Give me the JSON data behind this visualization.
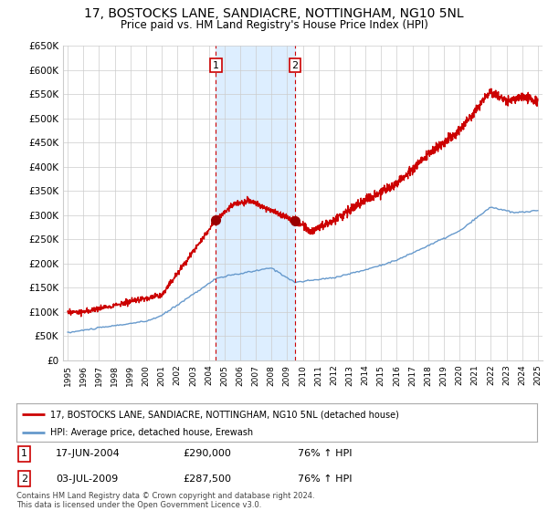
{
  "title": "17, BOSTOCKS LANE, SANDIACRE, NOTTINGHAM, NG10 5NL",
  "subtitle": "Price paid vs. HM Land Registry's House Price Index (HPI)",
  "title_fontsize": 10,
  "subtitle_fontsize": 8.5,
  "legend_label_red": "17, BOSTOCKS LANE, SANDIACRE, NOTTINGHAM, NG10 5NL (detached house)",
  "legend_label_blue": "HPI: Average price, detached house, Erewash",
  "footer": "Contains HM Land Registry data © Crown copyright and database right 2024.\nThis data is licensed under the Open Government Licence v3.0.",
  "transaction1_label": "1",
  "transaction1_date": "17-JUN-2004",
  "transaction1_price": "£290,000",
  "transaction1_hpi": "76% ↑ HPI",
  "transaction2_label": "2",
  "transaction2_date": "03-JUL-2009",
  "transaction2_price": "£287,500",
  "transaction2_hpi": "76% ↑ HPI",
  "vline1_x": 2004.46,
  "vline2_x": 2009.5,
  "sale1_y": 290000,
  "sale2_y": 287500,
  "ylim": [
    0,
    650000
  ],
  "xlim_start": 1994.7,
  "xlim_end": 2025.3,
  "yticks": [
    0,
    50000,
    100000,
    150000,
    200000,
    250000,
    300000,
    350000,
    400000,
    450000,
    500000,
    550000,
    600000,
    650000
  ],
  "red_color": "#cc0000",
  "blue_color": "#6699cc",
  "shade_color": "#ddeeff",
  "background_color": "#ffffff",
  "grid_color": "#cccccc",
  "marker_color": "#990000"
}
